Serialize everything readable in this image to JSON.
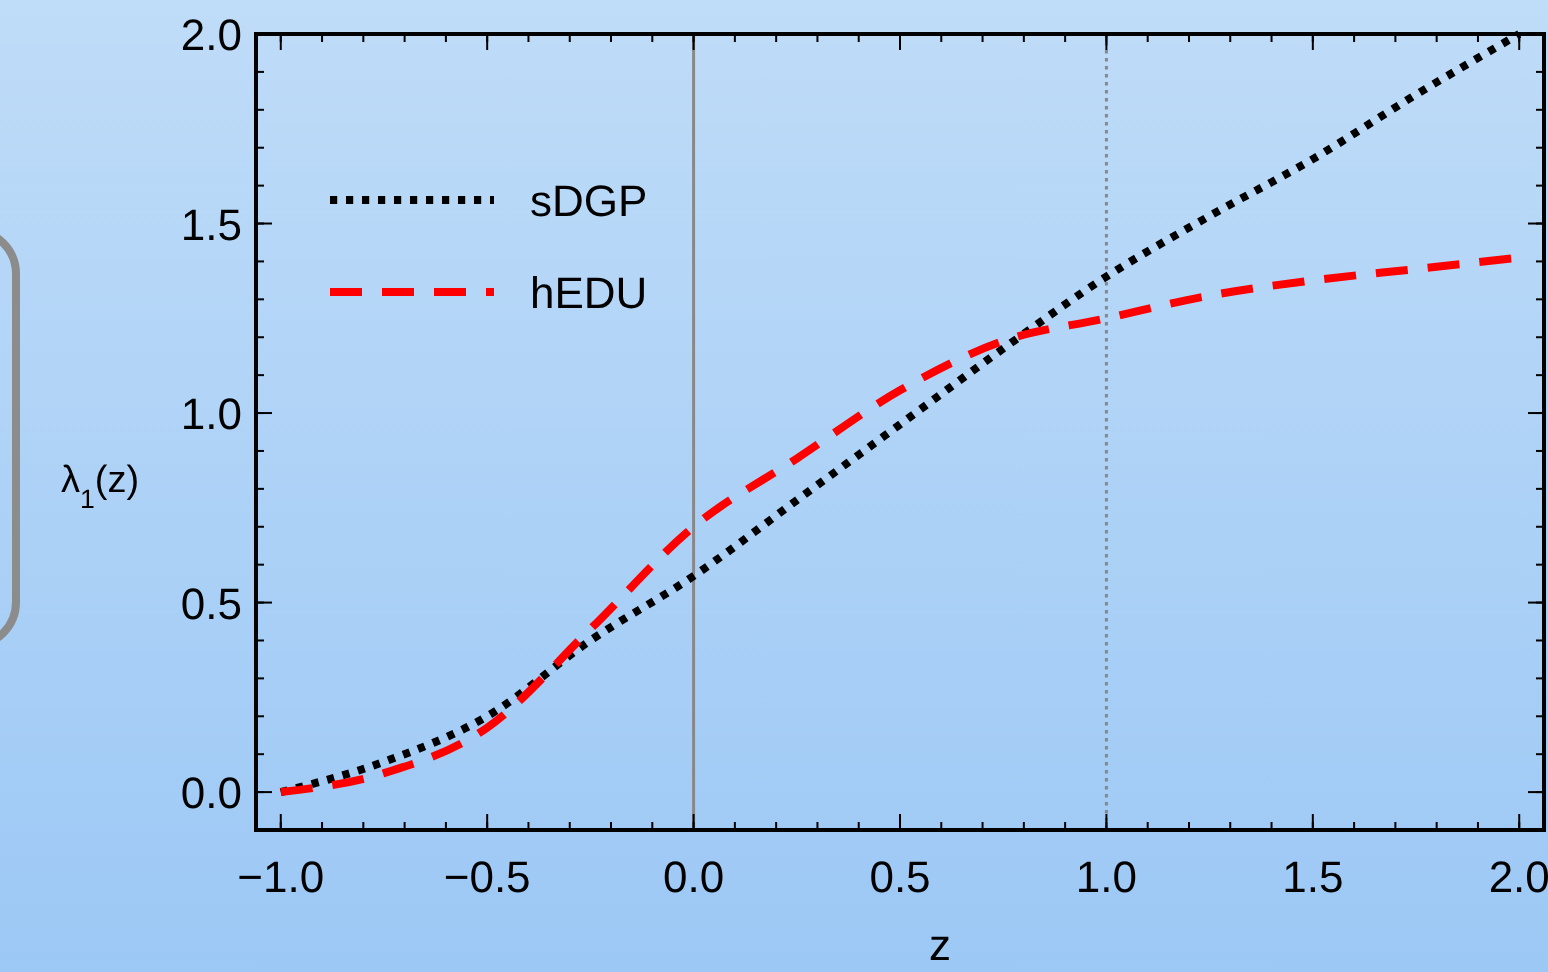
{
  "chart_data": {
    "type": "line",
    "xlabel": "z",
    "ylabel": "λ$_{1}$(z)",
    "xlim": [
      -1.06,
      2.06
    ],
    "ylim": [
      -0.1,
      2.0
    ],
    "xticks": [
      {
        "value": -1,
        "label": "−1.0"
      },
      {
        "value": -0.5,
        "label": "−0.5"
      },
      {
        "value": 0,
        "label": "0.0"
      },
      {
        "value": 0.5,
        "label": "0.5"
      },
      {
        "value": 1,
        "label": "1.0"
      },
      {
        "value": 1.5,
        "label": "1.5"
      },
      {
        "value": 2,
        "label": "2.0"
      }
    ],
    "yticks": [
      {
        "value": 0,
        "label": "0.0"
      },
      {
        "value": 0.5,
        "label": "0.5"
      },
      {
        "value": 1,
        "label": "1.0"
      },
      {
        "value": 1.5,
        "label": "1.5"
      },
      {
        "value": 2,
        "label": "2.0"
      }
    ],
    "x": [
      -1,
      -0.75,
      -0.5,
      -0.25,
      0,
      0.25,
      0.5,
      0.75,
      1,
      1.25,
      1.5,
      1.75,
      2
    ],
    "series": [
      {
        "name": "sDGP",
        "color": "#000000",
        "line_style": "dotted",
        "values": [
          0,
          0.08,
          0.2,
          0.4,
          0.57,
          0.77,
          0.97,
          1.17,
          1.36,
          1.52,
          1.67,
          1.84,
          2.0
        ]
      },
      {
        "name": "hEDU",
        "color": "#ff0000",
        "line_style": "dashed",
        "values": [
          0,
          0.05,
          0.17,
          0.43,
          0.7,
          0.88,
          1.06,
          1.19,
          1.25,
          1.31,
          1.35,
          1.38,
          1.41
        ]
      }
    ],
    "ref_lines": [
      {
        "axis": "x",
        "value": 0,
        "color": "#888888",
        "line_style": "solid"
      },
      {
        "axis": "x",
        "value": 1,
        "color": "#888888",
        "line_style": "dotted"
      }
    ],
    "legend": "top left",
    "grid": false
  }
}
